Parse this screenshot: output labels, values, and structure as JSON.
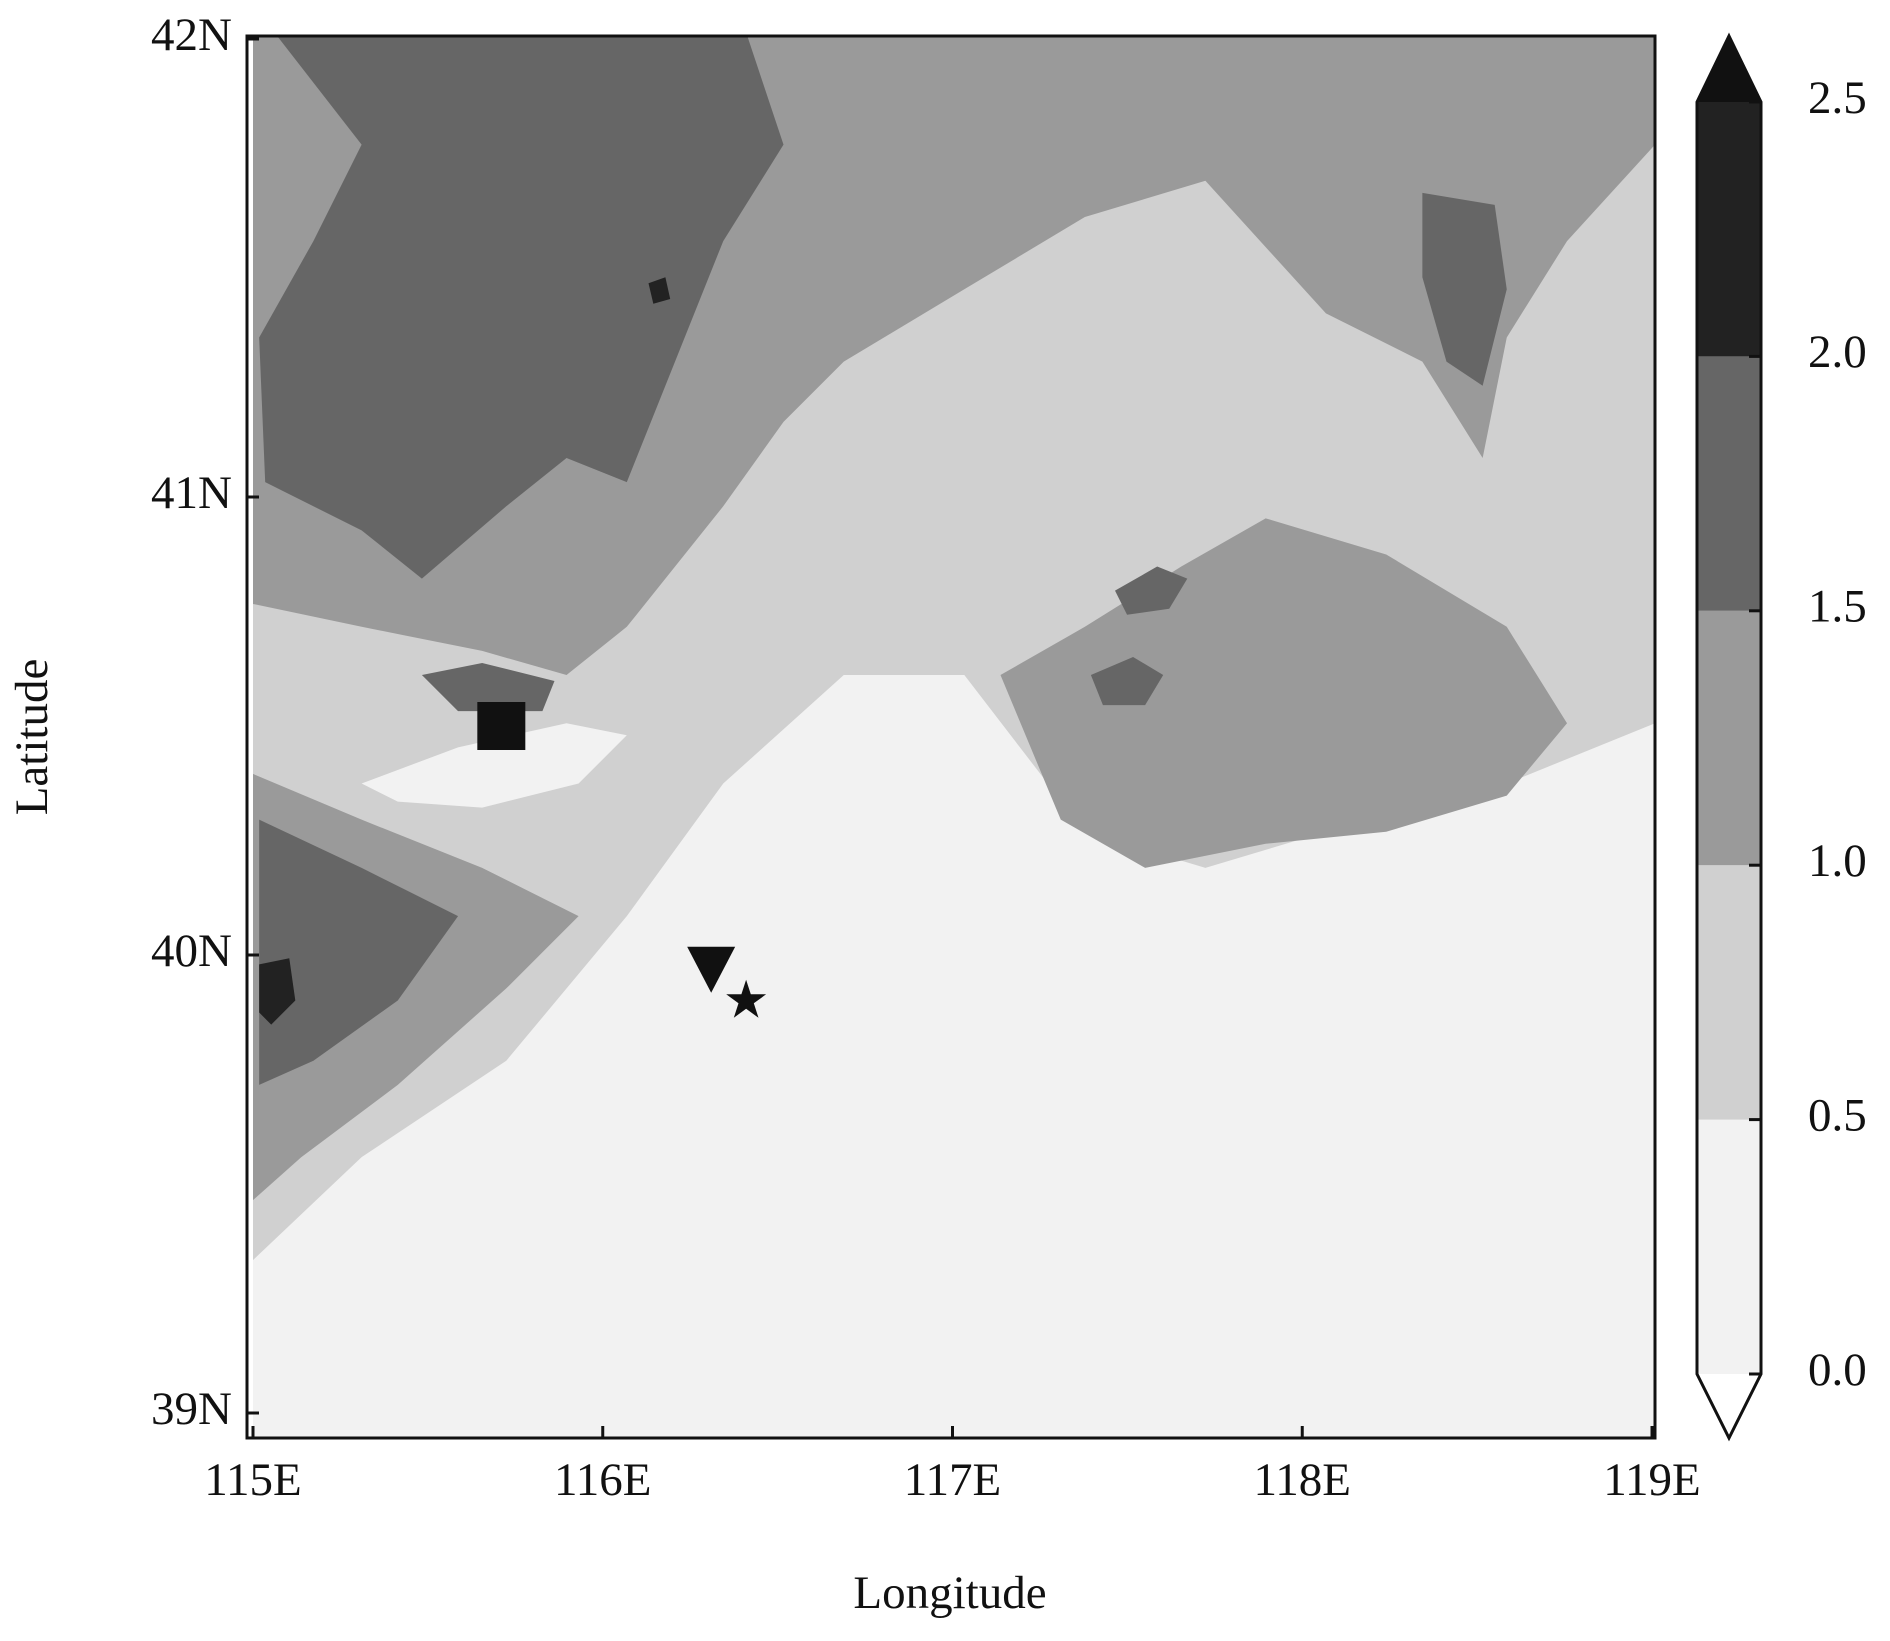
{
  "chart_data": {
    "type": "contour",
    "x_label": "Longitude",
    "y_label": "Latitude",
    "xlim": [
      115,
      119
    ],
    "ylim": [
      39,
      42
    ],
    "xticks": [
      {
        "value": 115,
        "label": "115E"
      },
      {
        "value": 116,
        "label": "116E"
      },
      {
        "value": 117,
        "label": "117E"
      },
      {
        "value": 118,
        "label": "118E"
      },
      {
        "value": 119,
        "label": "119E"
      }
    ],
    "yticks": [
      {
        "value": 39,
        "label": "39N"
      },
      {
        "value": 40,
        "label": "40N"
      },
      {
        "value": 41,
        "label": "41N"
      },
      {
        "value": 42,
        "label": "42N"
      }
    ],
    "levels": [
      {
        "value": 0,
        "label": "0.0"
      },
      0.5,
      {
        "value": 1,
        "label": "1.0"
      },
      1.5,
      {
        "value": 2,
        "label": "2.0"
      },
      2.5
    ],
    "colors": [
      "#f2f2f2",
      "#d0d0d0",
      "#9a9a9a",
      "#666666",
      "#222222"
    ],
    "extend_max_color": "#111111",
    "extend_min_color": "#ffffff",
    "markers": [
      {
        "x": 115.71,
        "y": 40.5,
        "shape": "square"
      },
      {
        "x": 116.31,
        "y": 39.97,
        "shape": "triangle-down"
      },
      {
        "x": 116.41,
        "y": 39.9,
        "shape": "star"
      }
    ]
  }
}
